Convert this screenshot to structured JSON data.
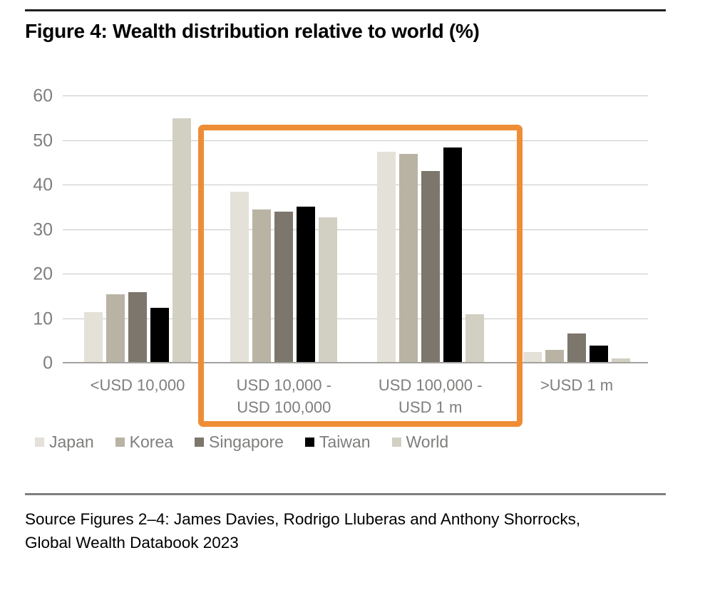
{
  "title": "Figure 4: Wealth distribution relative to world (%)",
  "chart_data": {
    "type": "bar",
    "title": "Figure 4: Wealth distribution relative to world (%)",
    "categories": [
      "<USD 10,000",
      "USD 10,000 - USD 100,000",
      "USD 100,000 - USD 1 m",
      ">USD 1 m"
    ],
    "category_label_lines": [
      [
        "<USD 10,000"
      ],
      [
        "USD 10,000 -",
        "USD 100,000"
      ],
      [
        "USD 100,000 -",
        "USD 1 m"
      ],
      [
        ">USD 1 m"
      ]
    ],
    "series": [
      {
        "name": "Japan",
        "color": "#e4e1d8",
        "values": [
          11.5,
          38.5,
          47.5,
          2.6
        ]
      },
      {
        "name": "Korea",
        "color": "#b9b3a4",
        "values": [
          15.5,
          34.5,
          47.0,
          3.0
        ]
      },
      {
        "name": "Singapore",
        "color": "#7c766c",
        "values": [
          16.0,
          34.1,
          43.2,
          6.8
        ]
      },
      {
        "name": "Taiwan",
        "color": "#000000",
        "values": [
          12.5,
          35.2,
          48.5,
          4.0
        ]
      },
      {
        "name": "World",
        "color": "#d2cfc3",
        "values": [
          55.0,
          32.8,
          11.0,
          1.2
        ]
      }
    ],
    "xlabel": "",
    "ylabel": "",
    "ylim": [
      0,
      60
    ],
    "yticks": [
      0,
      10,
      20,
      30,
      40,
      50,
      60
    ],
    "grid": true,
    "legend_position": "bottom",
    "highlight": {
      "color": "#ee8d36",
      "categories_covered": [
        "USD 10,000 - USD 100,000",
        "USD 100,000 - USD 1 m"
      ]
    }
  },
  "source": {
    "line1": "Source Figures 2–4: James Davies, Rodrigo Lluberas and Anthony Shorrocks,",
    "line2": "Global Wealth Databook 2023"
  }
}
